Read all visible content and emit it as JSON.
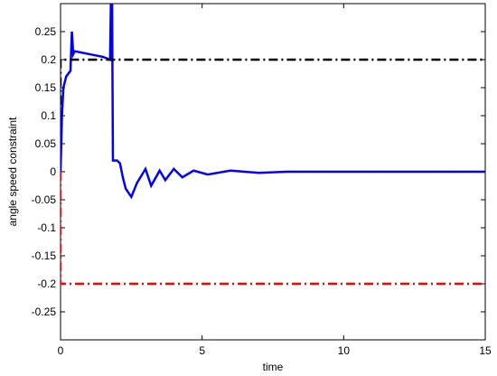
{
  "chart_data": {
    "type": "line",
    "xlabel": "time",
    "ylabel": "angle speed constraint",
    "xlim": [
      0,
      15
    ],
    "ylim": [
      -0.3,
      0.3
    ],
    "xticks": [
      0,
      5,
      10,
      15
    ],
    "yticks": [
      -0.25,
      -0.2,
      -0.15,
      -0.1,
      -0.05,
      0,
      0.05,
      0.1,
      0.15,
      0.2,
      0.25
    ],
    "series": [
      {
        "color": "#0000ff",
        "style": "solid",
        "width": 2.5,
        "x": [
          0,
          0.05,
          0.1,
          0.2,
          0.35,
          0.4,
          0.45,
          0.5,
          1.0,
          1.5,
          1.75,
          1.78,
          1.82,
          1.85,
          2.0,
          2.1,
          2.2,
          2.3,
          2.5,
          2.7,
          3.0,
          3.2,
          3.5,
          3.7,
          4.0,
          4.3,
          4.7,
          5.2,
          6.0,
          7.0,
          8.0,
          15
        ],
        "values": [
          0,
          0.1,
          0.15,
          0.17,
          0.18,
          0.25,
          0.21,
          0.215,
          0.21,
          0.205,
          0.2,
          0.31,
          0.31,
          0.02,
          0.02,
          0.015,
          -0.01,
          -0.03,
          -0.045,
          -0.02,
          0.005,
          -0.025,
          0.002,
          -0.015,
          0.005,
          -0.01,
          0.002,
          -0.005,
          0.002,
          -0.002,
          0,
          0
        ]
      },
      {
        "color": "#000000",
        "style": "dashdot",
        "width": 2.5,
        "x": [
          0,
          0,
          15
        ],
        "values": [
          0.12,
          0.2,
          0.2
        ]
      },
      {
        "color": "#ff0000",
        "style": "dashdot",
        "width": 2.5,
        "x": [
          0,
          0,
          15
        ],
        "values": [
          0,
          -0.2,
          -0.2
        ]
      }
    ]
  }
}
